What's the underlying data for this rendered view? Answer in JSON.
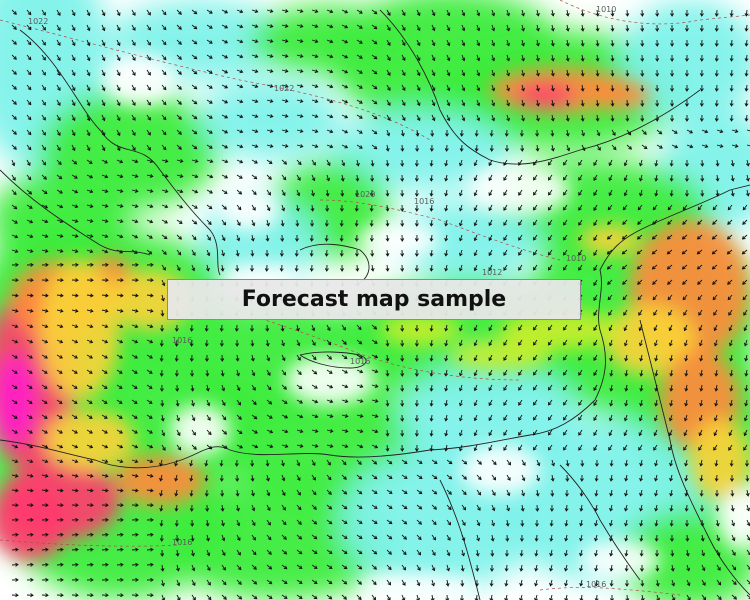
{
  "banner": {
    "text": "Forecast map sample"
  },
  "isobar_labels": [
    "1022",
    "1010",
    "1022",
    "1020",
    "1016",
    "1012",
    "1010",
    "1016",
    "1016",
    "1016",
    "1016"
  ],
  "colors": {
    "calm": "#ffffff",
    "light": "#7ff2ea",
    "moderate": "#3cec3c",
    "fresh": "#c8ee2a",
    "strong": "#f8d23a",
    "gale": "#ff8a3c",
    "storm": "#ff3c6e",
    "severe": "#ff22c8",
    "arrow": "#111111",
    "coast": "#222222",
    "isobar": "#b04a4a"
  }
}
